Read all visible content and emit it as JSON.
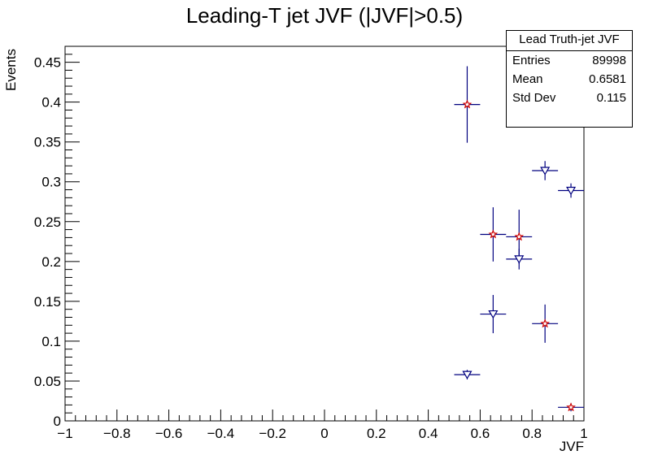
{
  "chart_data": {
    "type": "scatter",
    "title": "Leading-T jet JVF (|JVF|>0.5)",
    "xlabel": "JVF",
    "ylabel": "Events",
    "xlim": [
      -1,
      1
    ],
    "ylim": [
      0,
      0.47
    ],
    "x_ticks": [
      -1,
      -0.8,
      -0.6,
      -0.4,
      -0.2,
      0,
      0.2,
      0.4,
      0.6,
      0.8,
      1
    ],
    "x_tick_labels": [
      "−1",
      "−0.8",
      "−0.6",
      "−0.4",
      "−0.2",
      "0",
      "0.2",
      "0.4",
      "0.6",
      "0.8",
      "1"
    ],
    "y_ticks": [
      0,
      0.05,
      0.1,
      0.15,
      0.2,
      0.25,
      0.3,
      0.35,
      0.4,
      0.45
    ],
    "y_tick_labels": [
      "0",
      "0.05",
      "0.1",
      "0.15",
      "0.2",
      "0.25",
      "0.3",
      "0.35",
      "0.4",
      "0.45"
    ],
    "series": [
      {
        "marker": "star",
        "color": "#cc0000",
        "points": [
          {
            "x": 0.55,
            "y": 0.397,
            "xerr": 0.05,
            "yerr": 0.048
          },
          {
            "x": 0.65,
            "y": 0.234,
            "xerr": 0.05,
            "yerr": 0.034
          },
          {
            "x": 0.75,
            "y": 0.231,
            "xerr": 0.05,
            "yerr": 0.034
          },
          {
            "x": 0.85,
            "y": 0.122,
            "xerr": 0.05,
            "yerr": 0.024
          },
          {
            "x": 0.95,
            "y": 0.017,
            "xerr": 0.05,
            "yerr": 0.005
          }
        ]
      },
      {
        "marker": "open-triangle-down",
        "color": "#00007f",
        "points": [
          {
            "x": 0.55,
            "y": 0.058,
            "xerr": 0.05,
            "yerr": 0.006
          },
          {
            "x": 0.65,
            "y": 0.134,
            "xerr": 0.05,
            "yerr": 0.024
          },
          {
            "x": 0.75,
            "y": 0.203,
            "xerr": 0.05,
            "yerr": 0.013
          },
          {
            "x": 0.85,
            "y": 0.314,
            "xerr": 0.05,
            "yerr": 0.012
          },
          {
            "x": 0.95,
            "y": 0.289,
            "xerr": 0.05,
            "yerr": 0.009
          }
        ]
      }
    ],
    "error_bar_color": "#00007f",
    "stats_box": {
      "title": "Lead Truth-jet JVF",
      "entries_label": "Entries",
      "entries_value": "89998",
      "mean_label": "Mean",
      "mean_value": "0.6581",
      "stddev_label": "Std Dev",
      "stddev_value": "0.115"
    },
    "grid": false,
    "legend": "none"
  }
}
